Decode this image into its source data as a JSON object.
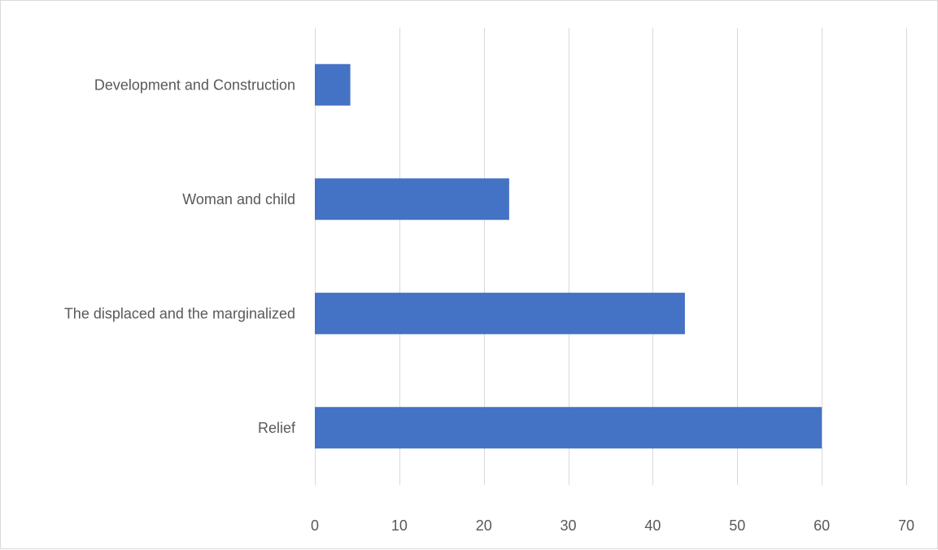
{
  "chart_data": {
    "type": "bar",
    "orientation": "horizontal",
    "title": "",
    "xlabel": "",
    "ylabel": "",
    "categories": [
      "Development and Construction",
      "Woman and child",
      "The displaced and the marginalized",
      "Relief"
    ],
    "values": [
      4.2,
      23,
      43.8,
      60
    ],
    "xlim": [
      0,
      70
    ],
    "xticks": [
      0,
      10,
      20,
      30,
      40,
      50,
      60,
      70
    ],
    "grid": "vertical",
    "legend": "none",
    "colors": {
      "bar": "#4472c4",
      "grid": "#d9d9d9",
      "text": "#595959",
      "border": "#d9d9d9"
    }
  }
}
